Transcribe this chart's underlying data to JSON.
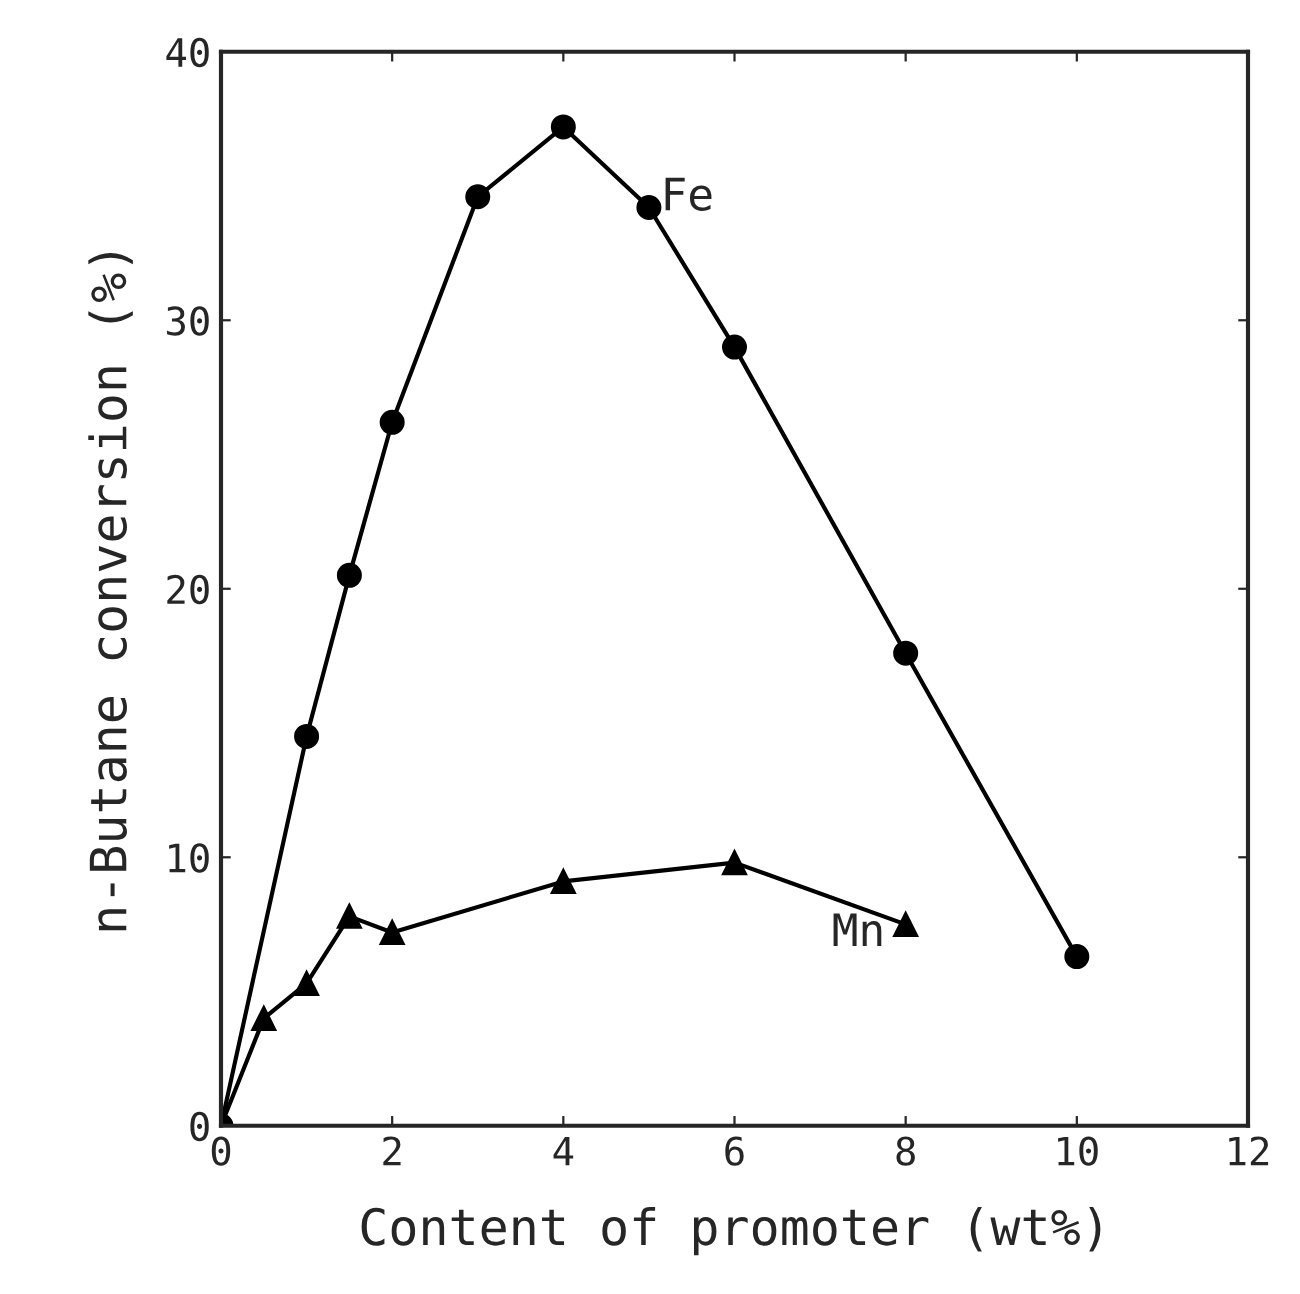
{
  "chart_data": {
    "type": "line",
    "xlabel": "Content of promoter (wt%)",
    "ylabel": "n-Butane conversion (%)",
    "xlim": [
      0,
      12
    ],
    "xticks": [
      0,
      2,
      4,
      6,
      8,
      10,
      12
    ],
    "ylim": [
      0,
      40
    ],
    "yticks": [
      0,
      10,
      20,
      30,
      40
    ],
    "grid": false,
    "legend": false,
    "series": [
      {
        "name": "Fe",
        "color": "#000000",
        "marker": "circle",
        "x": [
          0,
          1,
          1.5,
          2,
          3,
          4,
          5,
          6,
          8,
          10
        ],
        "values": [
          0,
          14.5,
          20.5,
          26.2,
          34.6,
          37.2,
          34.2,
          29.0,
          17.6,
          6.3
        ]
      },
      {
        "name": "Mn",
        "color": "#000000",
        "marker": "triangle",
        "x": [
          0,
          0.5,
          1,
          1.5,
          2,
          4,
          6,
          8
        ],
        "values": [
          0,
          4.0,
          5.3,
          7.8,
          7.2,
          9.1,
          9.8,
          7.5
        ]
      }
    ]
  }
}
